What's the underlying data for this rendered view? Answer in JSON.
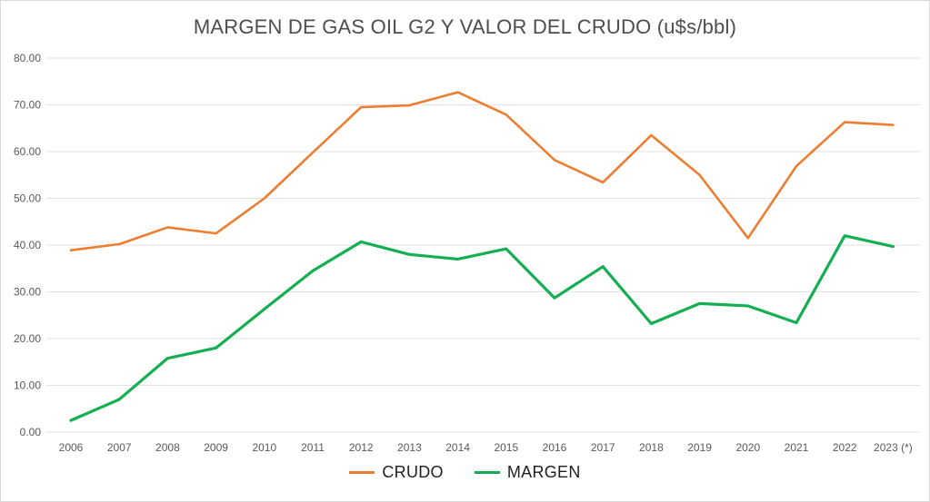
{
  "title": "MARGEN DE GAS OIL G2 Y VALOR DEL CRUDO (u$s/bbl)",
  "chart_data": {
    "type": "line",
    "title": "MARGEN DE GAS OIL G2 Y VALOR DEL CRUDO (u$s/bbl)",
    "categories": [
      "2006",
      "2007",
      "2008",
      "2009",
      "2010",
      "2011",
      "2012",
      "2013",
      "2014",
      "2015",
      "2016",
      "2017",
      "2018",
      "2019",
      "2020",
      "2021",
      "2022",
      "2023 (*)"
    ],
    "series": [
      {
        "name": "CRUDO",
        "color": "#ED7D31",
        "values": [
          38.9,
          40.2,
          43.8,
          42.5,
          50.0,
          59.8,
          69.5,
          69.9,
          72.7,
          67.9,
          58.2,
          53.4,
          63.5,
          55.0,
          41.5,
          56.9,
          66.3,
          65.7
        ]
      },
      {
        "name": "MARGEN",
        "color": "#14AE53",
        "values": [
          2.5,
          7.0,
          15.8,
          18.0,
          26.3,
          34.5,
          40.7,
          38.0,
          37.0,
          39.2,
          28.7,
          35.4,
          23.2,
          27.5,
          27.0,
          23.4,
          42.0,
          39.7
        ]
      }
    ],
    "xlabel": "",
    "ylabel": "",
    "ylim": [
      0,
      80
    ],
    "ytick_step": 10,
    "ytick_labels": [
      "0.00",
      "10.00",
      "20.00",
      "30.00",
      "40.00",
      "50.00",
      "60.00",
      "70.00",
      "80.00"
    ],
    "grid": "horizontal",
    "legend_position": "bottom"
  },
  "legend": {
    "items": [
      {
        "label": "CRUDO",
        "color": "#ED7D31"
      },
      {
        "label": "MARGEN",
        "color": "#14AE53"
      }
    ]
  },
  "colors": {
    "grid": "#e3e3e3",
    "tick_text": "#595959",
    "title_text": "#4d4d4d",
    "frame_border": "#d9d9d9",
    "legend_text": "#1f1f1f"
  }
}
